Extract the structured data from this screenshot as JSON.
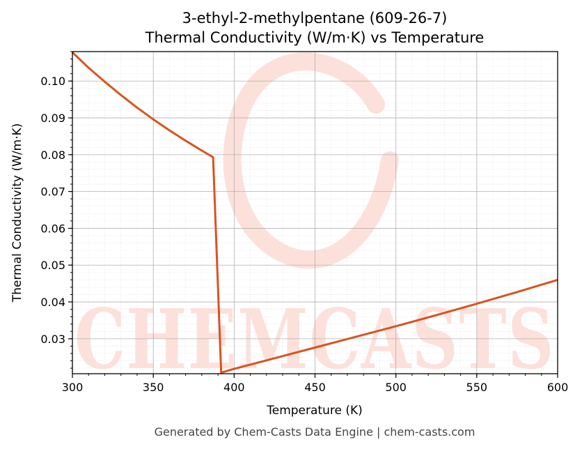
{
  "chart_data": {
    "type": "line",
    "title_line1": "3-ethyl-2-methylpentane (609-26-7)",
    "title_line2": "Thermal Conductivity (W/m·K) vs Temperature",
    "xlabel": "Temperature (K)",
    "ylabel": "Thermal Conductivity (W/m·K)",
    "xlim": [
      300,
      600
    ],
    "ylim": [
      0.0205,
      0.108
    ],
    "x_ticks": [
      300,
      350,
      400,
      450,
      500,
      550,
      600
    ],
    "x_tick_labels": [
      "300",
      "350",
      "400",
      "450",
      "500",
      "550",
      "600"
    ],
    "y_ticks": [
      0.03,
      0.04,
      0.05,
      0.06,
      0.07,
      0.08,
      0.09,
      0.1
    ],
    "y_tick_labels": [
      "0.03",
      "0.04",
      "0.05",
      "0.06",
      "0.07",
      "0.08",
      "0.09",
      "0.10"
    ],
    "grid": true,
    "line_color": "#d9531e",
    "series": [
      {
        "x": [
          300,
          310,
          320,
          330,
          340,
          350,
          360,
          370,
          380,
          387,
          392,
          400,
          425,
          450,
          475,
          500,
          525,
          550,
          575,
          600
        ],
        "y": [
          0.1078,
          0.1036,
          0.0998,
          0.0962,
          0.0928,
          0.0896,
          0.0866,
          0.0838,
          0.0811,
          0.0793,
          0.0208,
          0.0218,
          0.0247,
          0.0276,
          0.0305,
          0.0334,
          0.0364,
          0.0395,
          0.0427,
          0.046
        ]
      }
    ]
  },
  "watermark": {
    "text": "CHEMCASTS",
    "color": "#fde0da"
  },
  "footer": "Generated by Chem-Casts Data Engine | chem-casts.com"
}
